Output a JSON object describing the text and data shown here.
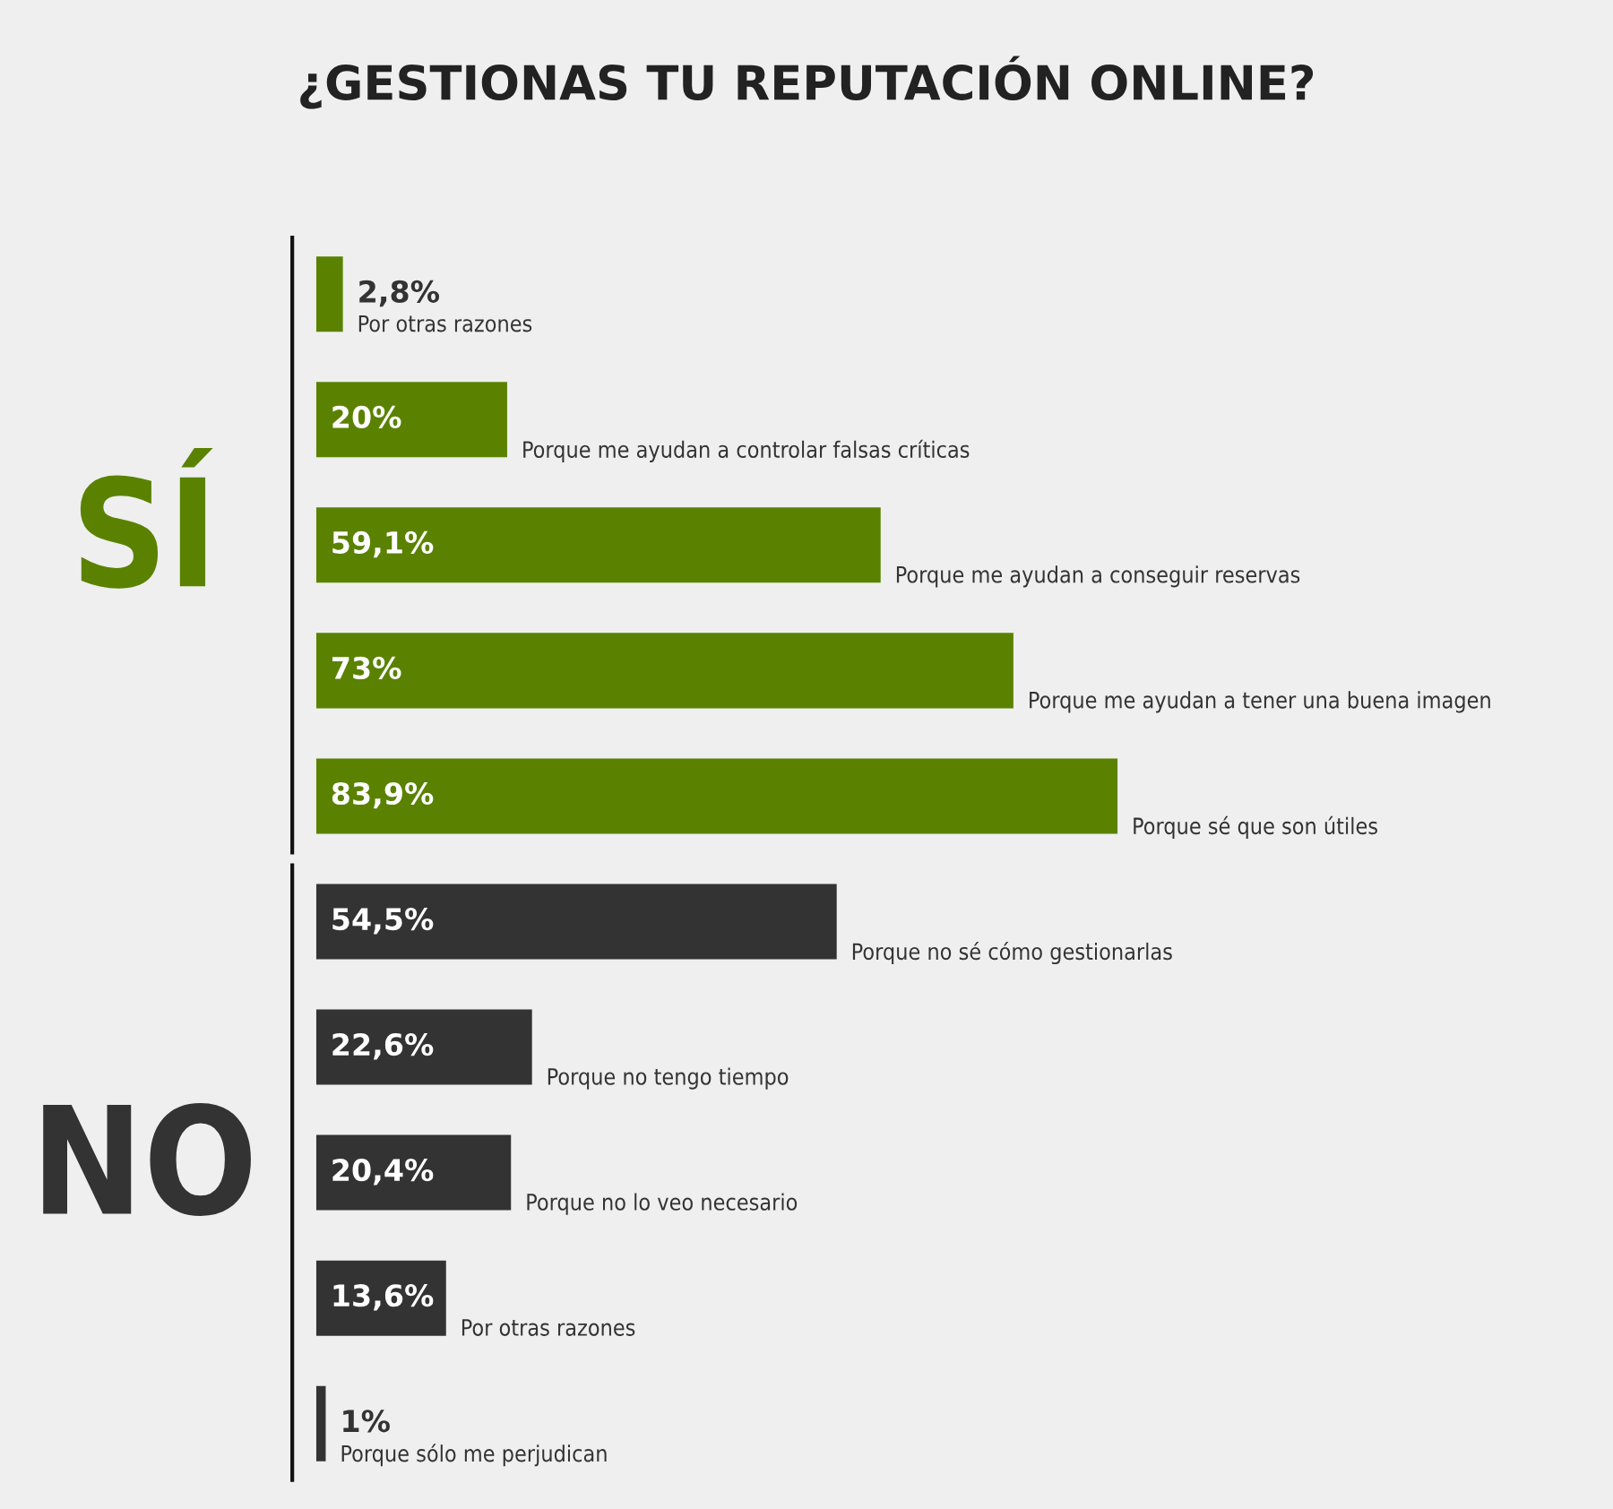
{
  "chart_data": {
    "type": "bar",
    "orientation": "horizontal",
    "title": "¿GESTIONAS TU REPUTACIÓN ONLINE?",
    "categories": [
      "Por otras razones",
      "Porque me ayudan a controlar falsas críticas",
      "Porque me ayudan a conseguir reservas",
      "Porque me ayudan a tener una buena imagen",
      "Porque sé que son útiles",
      "Porque no sé cómo gestionarlas",
      "Porque no tengo tiempo",
      "Porque no lo veo necesario",
      "Por otras razones",
      "Porque sólo me perjudican"
    ],
    "values": [
      2.8,
      20,
      59.1,
      73,
      83.9,
      54.5,
      22.6,
      20.4,
      13.6,
      1
    ],
    "value_labels": [
      "2,8%",
      "20%",
      "59,1%",
      "73%",
      "83,9%",
      "54,5%",
      "22,6%",
      "20,4%",
      "13,6%",
      "1%"
    ],
    "colors": [
      "#5a8200",
      "#5a8200",
      "#5a8200",
      "#5a8200",
      "#5a8200",
      "#333333",
      "#333333",
      "#333333",
      "#333333",
      "#333333"
    ],
    "annotations": [
      "SÍ",
      "NO"
    ],
    "tick_labels": false
  }
}
